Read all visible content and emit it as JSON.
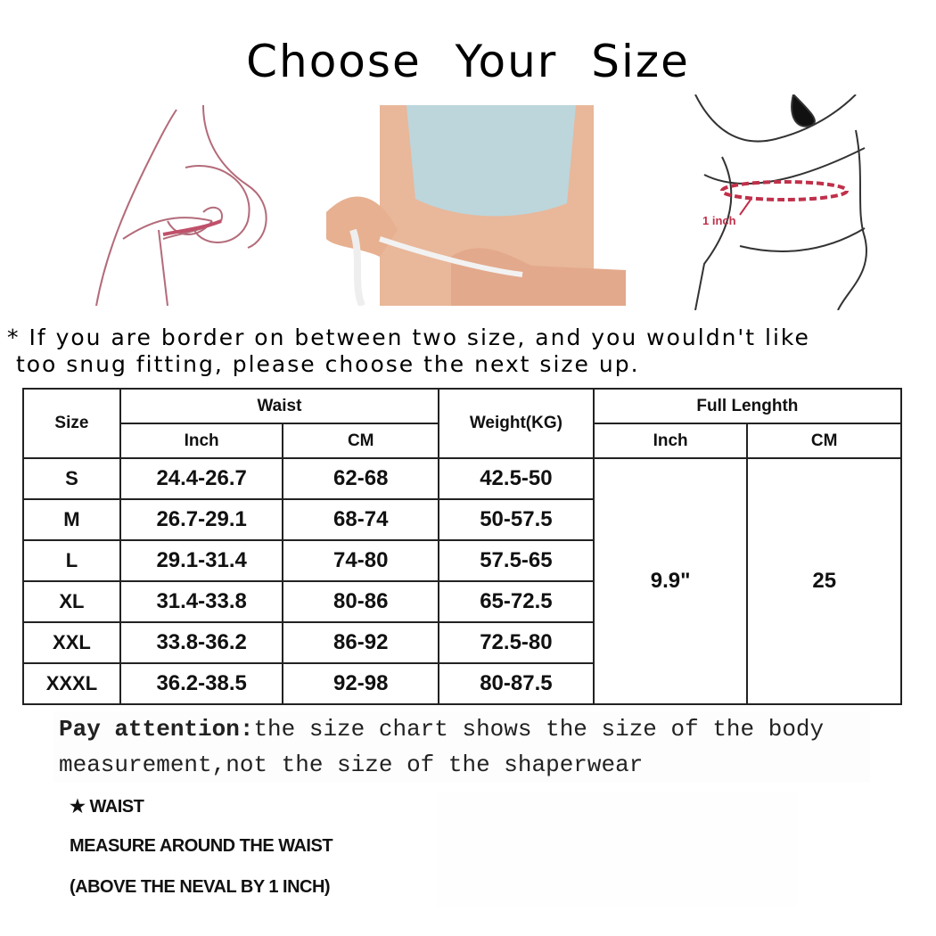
{
  "title": "Choose Your Size",
  "images": [
    {
      "name": "bust-measure-sketch",
      "label": ""
    },
    {
      "name": "waist-measure-photo",
      "label": ""
    },
    {
      "name": "waist-1inch-sketch",
      "label": "1 inch"
    }
  ],
  "note": "* If you are border on between two size, and you wouldn't like\n too snug fitting, please choose the next size up.",
  "table": {
    "headers": {
      "size": "Size",
      "waist": "Waist",
      "waist_inch": "Inch",
      "waist_cm": "CM",
      "weight": "Weight(KG)",
      "full_length": "Full Lenghth",
      "fl_inch": "Inch",
      "fl_cm": "CM"
    },
    "rows": [
      {
        "size": "S",
        "inch": "24.4-26.7",
        "cm": "62-68",
        "weight": "42.5-50"
      },
      {
        "size": "M",
        "inch": "26.7-29.1",
        "cm": "68-74",
        "weight": "50-57.5"
      },
      {
        "size": "L",
        "inch": "29.1-31.4",
        "cm": "74-80",
        "weight": "57.5-65"
      },
      {
        "size": "XL",
        "inch": "31.4-33.8",
        "cm": "80-86",
        "weight": "65-72.5"
      },
      {
        "size": "XXL",
        "inch": "33.8-36.2",
        "cm": "86-92",
        "weight": "72.5-80"
      },
      {
        "size": "XXXL",
        "inch": "36.2-38.5",
        "cm": "92-98",
        "weight": "80-87.5"
      }
    ],
    "full_length_inch": "9.9\"",
    "full_length_cm": "25"
  },
  "attention": {
    "bold": "Pay attention:",
    "line1": "the size chart shows the size of the body",
    "line2": "measurement,not the size of the shaperwear"
  },
  "waist_guide": {
    "heading": "★ WAIST",
    "line1": "MEASURE AROUND THE WAIST",
    "line2": "(ABOVE THE NEVAL BY 1 INCH)"
  }
}
